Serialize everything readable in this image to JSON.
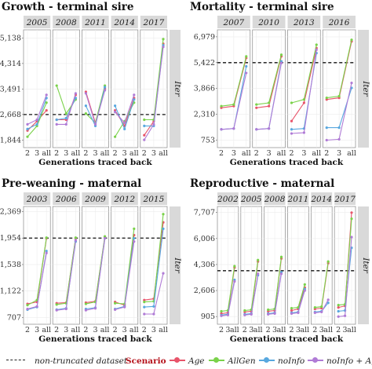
{
  "colors": {
    "Age": "#e8546a",
    "AllGen": "#7ad24a",
    "noInfo": "#58a8df",
    "noInfo + Age": "#b07bd6",
    "reference": "#111111",
    "strip_bg": "#d9d9d9",
    "panel_bg": "#ffffff",
    "scenario_title": "#b5121b"
  },
  "legend": {
    "reference_label": "non-truncated dataset",
    "title": "Scenario",
    "entries": [
      "Age",
      "AllGen",
      "noInfo",
      "noInfo + Age"
    ],
    "placement": "bottom"
  },
  "chart_data": [
    {
      "type": "line",
      "title": "Growth - terminal sire",
      "xlabel": "Generations traced back",
      "strip_right": "Iter",
      "x": [
        "2",
        "3",
        "all"
      ],
      "yticks": [
        1844,
        2668,
        3491,
        4314,
        5138
      ],
      "ylim": [
        1600,
        5400
      ],
      "reference": 2668,
      "facets": [
        {
          "year": "2005",
          "series": [
            {
              "name": "Age",
              "values": [
                2150,
                2450,
                2800
              ]
            },
            {
              "name": "AllGen",
              "values": [
                1950,
                2300,
                3050
              ]
            },
            {
              "name": "noInfo",
              "values": [
                2200,
                2350,
                3200
              ]
            },
            {
              "name": "noInfo + Age",
              "values": [
                2350,
                2500,
                3300
              ]
            }
          ]
        },
        {
          "year": "2008",
          "series": [
            {
              "name": "Age",
              "values": [
                2500,
                2500,
                3300
              ]
            },
            {
              "name": "AllGen",
              "values": [
                3600,
                2700,
                3150
              ]
            },
            {
              "name": "noInfo",
              "values": [
                2500,
                2550,
                3200
              ]
            },
            {
              "name": "noInfo + Age",
              "values": [
                2350,
                2350,
                3350
              ]
            }
          ]
        },
        {
          "year": "2011",
          "series": [
            {
              "name": "Age",
              "values": [
                3400,
                2400,
                3500
              ]
            },
            {
              "name": "AllGen",
              "values": [
                2700,
                2400,
                3600
              ]
            },
            {
              "name": "noInfo",
              "values": [
                2950,
                2300,
                3550
              ]
            },
            {
              "name": "noInfo + Age",
              "values": [
                3350,
                2350,
                3450
              ]
            }
          ]
        },
        {
          "year": "2014",
          "series": [
            {
              "name": "Age",
              "values": [
                2800,
                2300,
                3200
              ]
            },
            {
              "name": "AllGen",
              "values": [
                1950,
                2450,
                3050
              ]
            },
            {
              "name": "noInfo",
              "values": [
                2950,
                2200,
                3150
              ]
            },
            {
              "name": "noInfo + Age",
              "values": [
                2750,
                2400,
                3300
              ]
            }
          ]
        },
        {
          "year": "2017",
          "series": [
            {
              "name": "Age",
              "values": [
                2000,
                2450,
                4950
              ]
            },
            {
              "name": "AllGen",
              "values": [
                2500,
                2500,
                5100
              ]
            },
            {
              "name": "noInfo",
              "values": [
                2300,
                2300,
                4900
              ]
            },
            {
              "name": "noInfo + Age",
              "values": [
                1850,
                2350,
                4850
              ]
            }
          ]
        }
      ]
    },
    {
      "type": "line",
      "title": "Mortality - terminal sire",
      "xlabel": "Generations traced back",
      "strip_right": "Iter",
      "x": [
        "2",
        "3",
        "all"
      ],
      "yticks": [
        753,
        2310,
        3866,
        5422,
        6979
      ],
      "ylim": [
        300,
        7400
      ],
      "reference": 5422,
      "facets": [
        {
          "year": "2007",
          "series": [
            {
              "name": "Age",
              "values": [
                2700,
                2800,
                5700
              ]
            },
            {
              "name": "AllGen",
              "values": [
                2800,
                2900,
                5800
              ]
            },
            {
              "name": "noInfo",
              "values": [
                1400,
                1450,
                5200
              ]
            },
            {
              "name": "noInfo + Age",
              "values": [
                1400,
                1450,
                4800
              ]
            }
          ]
        },
        {
          "year": "2010",
          "series": [
            {
              "name": "Age",
              "values": [
                2700,
                2800,
                5800
              ]
            },
            {
              "name": "AllGen",
              "values": [
                2900,
                3000,
                5900
              ]
            },
            {
              "name": "noInfo",
              "values": [
                1400,
                1450,
                5500
              ]
            },
            {
              "name": "noInfo + Age",
              "values": [
                1400,
                1450,
                5400
              ]
            }
          ]
        },
        {
          "year": "2013",
          "series": [
            {
              "name": "Age",
              "values": [
                1900,
                3000,
                6300
              ]
            },
            {
              "name": "AllGen",
              "values": [
                3000,
                3200,
                6500
              ]
            },
            {
              "name": "noInfo",
              "values": [
                1400,
                1450,
                6000
              ]
            },
            {
              "name": "noInfo + Age",
              "values": [
                1150,
                1200,
                6200
              ]
            }
          ]
        },
        {
          "year": "2016",
          "series": [
            {
              "name": "Age",
              "values": [
                3200,
                3300,
                6700
              ]
            },
            {
              "name": "AllGen",
              "values": [
                3300,
                3400,
                6800
              ]
            },
            {
              "name": "noInfo",
              "values": [
                1500,
                1500,
                3900
              ]
            },
            {
              "name": "noInfo + Age",
              "values": [
                750,
                800,
                4200
              ]
            }
          ]
        }
      ]
    },
    {
      "type": "line",
      "title": "Pre-weaning - maternal",
      "xlabel": "Generations traced back",
      "strip_right": "Iter",
      "x": [
        "2",
        "3",
        "all"
      ],
      "yticks": [
        707,
        1122,
        1538,
        1954,
        2369
      ],
      "ylim": [
        600,
        2450
      ],
      "reference": 1954,
      "facets": [
        {
          "year": "2003",
          "series": [
            {
              "name": "Age",
              "values": [
                920,
                950,
                1950
              ]
            },
            {
              "name": "AllGen",
              "values": [
                900,
                980,
                1960
              ]
            },
            {
              "name": "noInfo",
              "values": [
                830,
                870,
                1750
              ]
            },
            {
              "name": "noInfo + Age",
              "values": [
                840,
                880,
                1720
              ]
            }
          ]
        },
        {
          "year": "2006",
          "series": [
            {
              "name": "Age",
              "values": [
                930,
                940,
                1950
              ]
            },
            {
              "name": "AllGen",
              "values": [
                910,
                930,
                1960
              ]
            },
            {
              "name": "noInfo",
              "values": [
                830,
                850,
                1900
              ]
            },
            {
              "name": "noInfo + Age",
              "values": [
                820,
                840,
                1920
              ]
            }
          ]
        },
        {
          "year": "2009",
          "series": [
            {
              "name": "Age",
              "values": [
                940,
                960,
                1970
              ]
            },
            {
              "name": "AllGen",
              "values": [
                920,
                950,
                1980
              ]
            },
            {
              "name": "noInfo",
              "values": [
                840,
                860,
                1950
              ]
            },
            {
              "name": "noInfo + Age",
              "values": [
                820,
                850,
                1950
              ]
            }
          ]
        },
        {
          "year": "2012",
          "series": [
            {
              "name": "Age",
              "values": [
                950,
                900,
                2000
              ]
            },
            {
              "name": "AllGen",
              "values": [
                930,
                920,
                2100
              ]
            },
            {
              "name": "noInfo",
              "values": [
                840,
                880,
                1950
              ]
            },
            {
              "name": "noInfo + Age",
              "values": [
                830,
                870,
                1900
              ]
            }
          ]
        },
        {
          "year": "2015",
          "series": [
            {
              "name": "Age",
              "values": [
                980,
                1000,
                2200
              ]
            },
            {
              "name": "AllGen",
              "values": [
                950,
                960,
                2330
              ]
            },
            {
              "name": "noInfo",
              "values": [
                870,
                880,
                2100
              ]
            },
            {
              "name": "noInfo + Age",
              "values": [
                760,
                760,
                1400
              ]
            }
          ]
        }
      ]
    },
    {
      "type": "line",
      "title": "Reproductive - maternal",
      "xlabel": "Generations traced back",
      "strip_right": "Iter",
      "x": [
        "2",
        "3",
        "all"
      ],
      "yticks": [
        905,
        2606,
        4306,
        6006,
        7707
      ],
      "ylim": [
        400,
        8100
      ],
      "reference": 3900,
      "facets": [
        {
          "year": "2002",
          "series": [
            {
              "name": "Age",
              "values": [
                1100,
                1150,
                4100
              ]
            },
            {
              "name": "AllGen",
              "values": [
                1250,
                1300,
                4200
              ]
            },
            {
              "name": "noInfo",
              "values": [
                1000,
                1050,
                3300
              ]
            },
            {
              "name": "noInfo + Age",
              "values": [
                950,
                1000,
                3200
              ]
            }
          ]
        },
        {
          "year": "2005",
          "series": [
            {
              "name": "Age",
              "values": [
                1200,
                1250,
                4500
              ]
            },
            {
              "name": "AllGen",
              "values": [
                1300,
                1350,
                4600
              ]
            },
            {
              "name": "noInfo",
              "values": [
                1050,
                1100,
                3600
              ]
            },
            {
              "name": "noInfo + Age",
              "values": [
                1000,
                1050,
                3700
              ]
            }
          ]
        },
        {
          "year": "2008",
          "series": [
            {
              "name": "Age",
              "values": [
                1250,
                1300,
                4700
              ]
            },
            {
              "name": "AllGen",
              "values": [
                1350,
                1400,
                4800
              ]
            },
            {
              "name": "noInfo",
              "values": [
                1100,
                1150,
                3800
              ]
            },
            {
              "name": "noInfo + Age",
              "values": [
                1050,
                1100,
                3700
              ]
            }
          ]
        },
        {
          "year": "2011",
          "series": [
            {
              "name": "Age",
              "values": [
                1300,
                1400,
                2800
              ]
            },
            {
              "name": "AllGen",
              "values": [
                1450,
                1500,
                3000
              ]
            },
            {
              "name": "noInfo",
              "values": [
                1150,
                1200,
                2700
              ]
            },
            {
              "name": "noInfo + Age",
              "values": [
                1100,
                1150,
                2600
              ]
            }
          ]
        },
        {
          "year": "2014",
          "series": [
            {
              "name": "Age",
              "values": [
                1400,
                1450,
                4400
              ]
            },
            {
              "name": "AllGen",
              "values": [
                1500,
                1550,
                4500
              ]
            },
            {
              "name": "noInfo",
              "values": [
                1200,
                1250,
                1800
              ]
            },
            {
              "name": "noInfo + Age",
              "values": [
                1150,
                1200,
                2000
              ]
            }
          ]
        },
        {
          "year": "2017",
          "series": [
            {
              "name": "Age",
              "values": [
                1500,
                1600,
                7700
              ]
            },
            {
              "name": "AllGen",
              "values": [
                1650,
                1700,
                7300
              ]
            },
            {
              "name": "noInfo",
              "values": [
                1250,
                1300,
                5400
              ]
            },
            {
              "name": "noInfo + Age",
              "values": [
                900,
                950,
                6100
              ]
            }
          ]
        }
      ]
    }
  ]
}
